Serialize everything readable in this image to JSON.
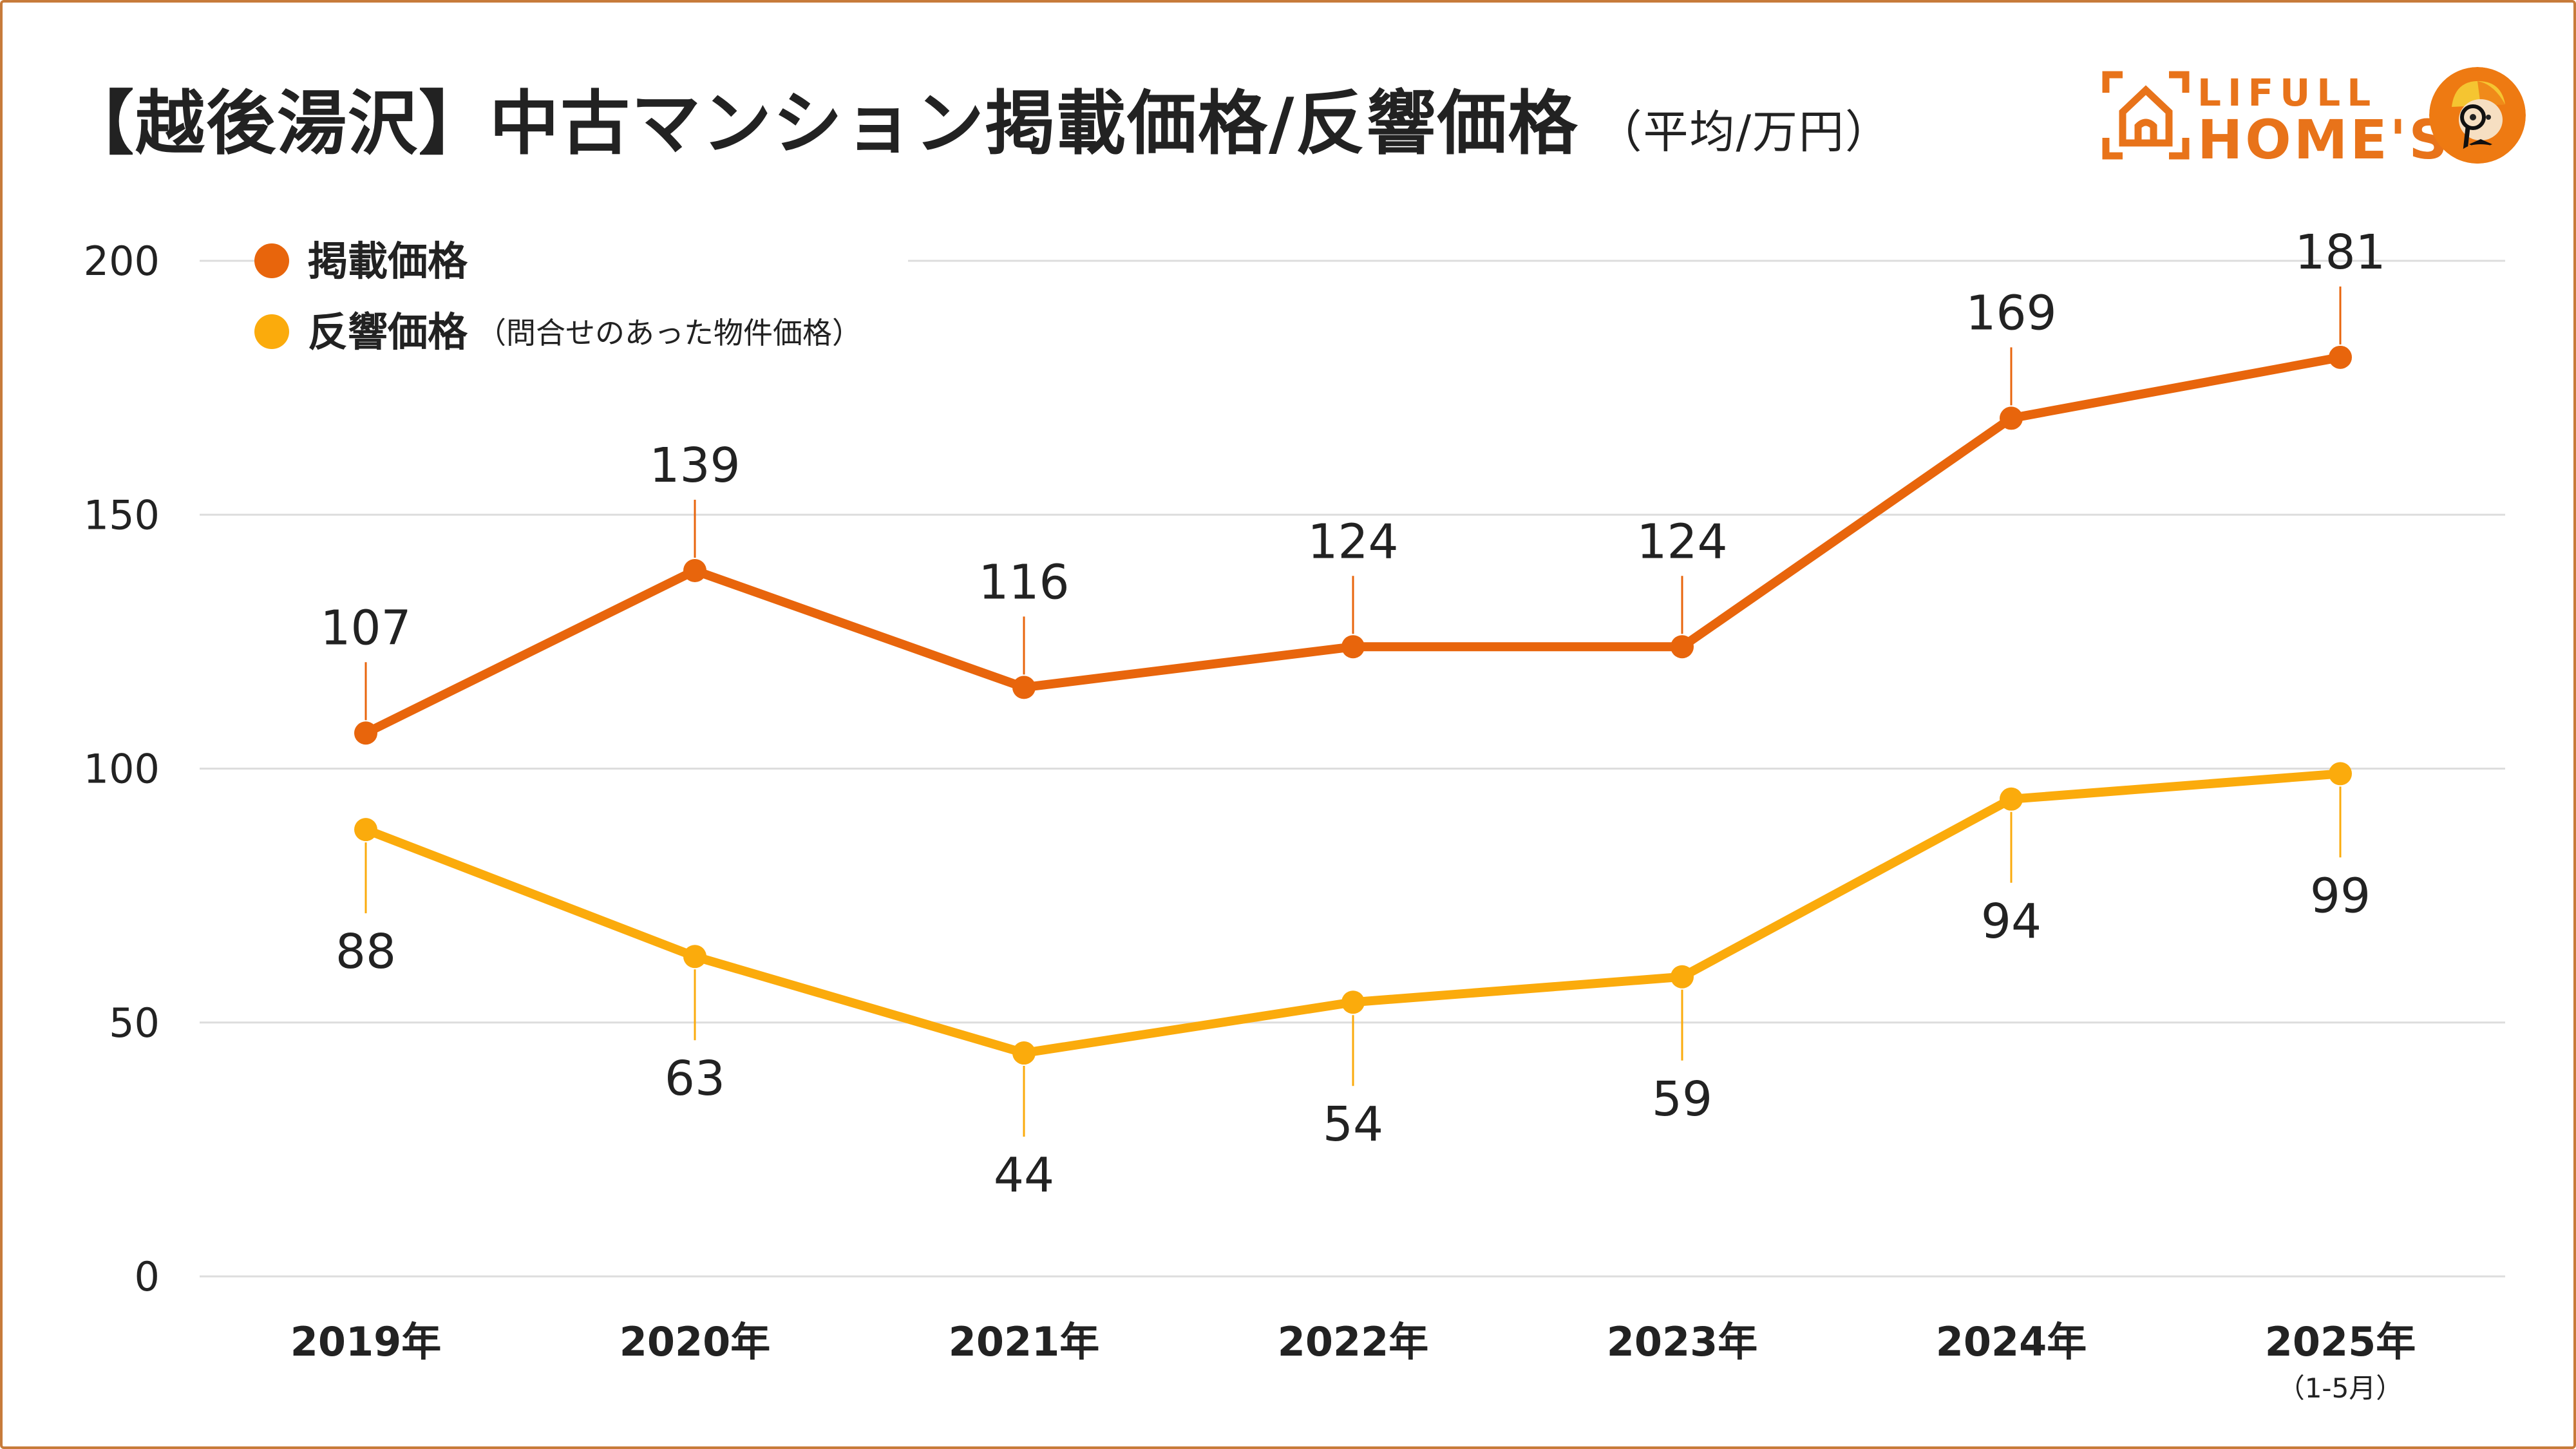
{
  "header": {
    "title": "【越後湯沢】中古マンション掲載価格/反響価格",
    "subtitle": "（平均/万円）"
  },
  "logo": {
    "line1": "LIFULL",
    "line2": "HOME'S",
    "brand_color": "#e8731a",
    "mascot": "detective-mascot-icon"
  },
  "colors": {
    "listing": "#e8650c",
    "inquiry": "#fbab0c",
    "grid": "#dddddd",
    "frame": "#c77b3a"
  },
  "chart_data": {
    "type": "line",
    "title": "【越後湯沢】中古マンション掲載価格/反響価格（平均/万円）",
    "xlabel": "",
    "ylabel": "",
    "categories": [
      "2019年",
      "2020年",
      "2021年",
      "2022年",
      "2023年",
      "2024年",
      "2025年"
    ],
    "category_notes": [
      "",
      "",
      "",
      "",
      "",
      "",
      "（1-5月）"
    ],
    "ylim": [
      0,
      200
    ],
    "yticks": [
      0,
      50,
      100,
      150,
      200
    ],
    "ytick_labels": [
      "0",
      "50",
      "100",
      "150",
      "200"
    ],
    "grid": true,
    "legend_position": "top-left",
    "series": [
      {
        "name": "掲載価格",
        "note": "",
        "color": "#e8650c",
        "values": [
          107,
          139,
          116,
          124,
          124,
          169,
          181
        ],
        "labels": [
          "107",
          "139",
          "116",
          "124",
          "124",
          "169",
          "181"
        ],
        "label_position": "above"
      },
      {
        "name": "反響価格",
        "note": "（問合せのあった物件価格）",
        "color": "#fbab0c",
        "values": [
          88,
          63,
          44,
          54,
          59,
          94,
          99
        ],
        "labels": [
          "88",
          "63",
          "44",
          "54",
          "59",
          "94",
          "99"
        ],
        "label_position": "below"
      }
    ]
  }
}
